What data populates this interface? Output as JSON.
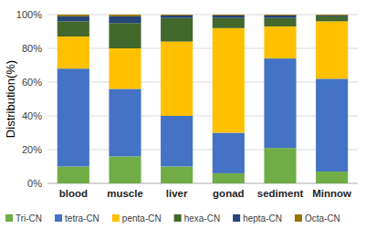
{
  "chart_data": {
    "type": "bar",
    "stacked": true,
    "y_label": "Distribution(%)",
    "categories": [
      "blood",
      "muscle",
      "liver",
      "gonad",
      "sediment",
      "Minnow"
    ],
    "series": [
      {
        "name": "Tri-CN",
        "color": "#70ad47",
        "values": [
          10,
          16,
          10,
          6,
          21,
          7
        ]
      },
      {
        "name": "tetra-CN",
        "color": "#4472c4",
        "values": [
          58,
          40,
          30,
          24,
          53,
          55
        ]
      },
      {
        "name": "penta-CN",
        "color": "#ffc000",
        "values": [
          19,
          24,
          44,
          62,
          19,
          34
        ]
      },
      {
        "name": "hexa-CN",
        "color": "#43682b",
        "values": [
          9,
          15,
          14,
          6,
          5,
          3
        ]
      },
      {
        "name": "hepta-CN",
        "color": "#264478",
        "values": [
          3,
          4,
          1.5,
          1.5,
          1.5,
          0.5
        ]
      },
      {
        "name": "Octa-CN",
        "color": "#997300",
        "values": [
          1,
          1,
          0.5,
          0.5,
          0.5,
          0.5
        ]
      }
    ],
    "ylim": [
      0,
      100
    ],
    "yticks": [
      {
        "value": 0,
        "label": "0%"
      },
      {
        "value": 20,
        "label": "20%"
      },
      {
        "value": 40,
        "label": "40%"
      },
      {
        "value": 60,
        "label": "60%"
      },
      {
        "value": 80,
        "label": "80%"
      },
      {
        "value": 100,
        "label": "100%"
      }
    ],
    "grid": true,
    "legend": "bottom"
  }
}
